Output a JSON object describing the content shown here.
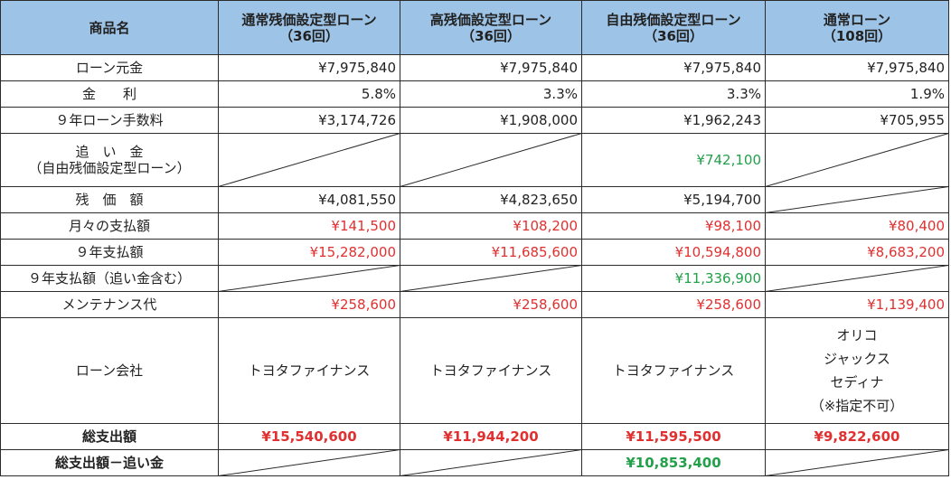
{
  "headers": {
    "item": "商品名",
    "plan1": [
      "通常残価設定型ローン",
      "（36回）"
    ],
    "plan2": [
      "高残価設定型ローン",
      "（36回）"
    ],
    "plan3": [
      "自由残価設定型ローン",
      "（36回）"
    ],
    "plan4": [
      "通常ローン",
      "（108回）"
    ]
  },
  "rows": {
    "principal": {
      "label": "ローン元金",
      "v1": "¥7,975,840",
      "v2": "¥7,975,840",
      "v3": "¥7,975,840",
      "v4": "¥7,975,840"
    },
    "rate": {
      "label": "金　　利",
      "v1": "5.8%",
      "v2": "3.3%",
      "v3": "3.3%",
      "v4": "1.9%"
    },
    "fee": {
      "label": "９年ローン手数料",
      "v1": "¥3,174,726",
      "v2": "¥1,908,000",
      "v3": "¥1,962,243",
      "v4": "¥705,955"
    },
    "oikin": {
      "label1": "追　い　金",
      "label2": "（自由残価設定型ローン）",
      "v3": "¥742,100"
    },
    "residual": {
      "label": "残　価　額",
      "v1": "¥4,081,550",
      "v2": "¥4,823,650",
      "v3": "¥5,194,700"
    },
    "monthly": {
      "label": "月々の支払額",
      "v1": "¥141,500",
      "v2": "¥108,200",
      "v3": "¥98,100",
      "v4": "¥80,400"
    },
    "total9": {
      "label": "９年支払額",
      "v1": "¥15,282,000",
      "v2": "¥11,685,600",
      "v3": "¥10,594,800",
      "v4": "¥8,683,200"
    },
    "total9oi": {
      "label": "９年支払額（追い金含む）",
      "v3": "¥11,336,900"
    },
    "maint": {
      "label": "メンテナンス代",
      "v1": "¥258,600",
      "v2": "¥258,600",
      "v3": "¥258,600",
      "v4": "¥1,139,400"
    },
    "company": {
      "label": "ローン会社",
      "v1": "トヨタファイナンス",
      "v2": "トヨタファイナンス",
      "v3": "トヨタファイナンス",
      "v4": [
        "オリコ",
        "ジャックス",
        "セディナ",
        "（※指定不可）"
      ]
    },
    "grand": {
      "label": "総支出額",
      "v1": "¥15,540,600",
      "v2": "¥11,944,200",
      "v3": "¥11,595,500",
      "v4": "¥9,822,600"
    },
    "grandless": {
      "label": "総支出額－追い金",
      "v3": "¥10,853,400"
    }
  },
  "colors": {
    "header_bg": "#9dc3e6",
    "red": "#e03030",
    "green": "#22a04a"
  }
}
